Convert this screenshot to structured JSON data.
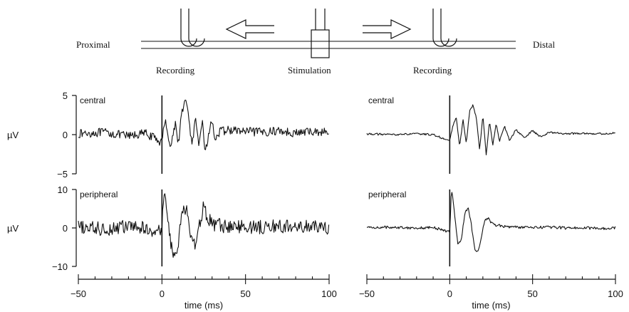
{
  "diagram": {
    "proximal_label": "Proximal",
    "distal_label": "Distal",
    "recording_left": "Recording",
    "stimulation": "Stimulation",
    "recording_right": "Recording"
  },
  "chart_data": [
    {
      "type": "line",
      "panel": "left-top",
      "label": "central",
      "ylabel": "µV",
      "xlim": [
        -50,
        100
      ],
      "ylim": [
        -5,
        5
      ],
      "yticks": [
        5,
        0,
        -5
      ],
      "stimulus_artifact_ms": 0,
      "series": [
        {
          "x": [
            -50,
            -35,
            -20,
            -10,
            0,
            2,
            5,
            8,
            10,
            12,
            14,
            16,
            18,
            20,
            22,
            24,
            26,
            28,
            30,
            32,
            35,
            40,
            50,
            60,
            70,
            80,
            90,
            100
          ],
          "y": [
            0.1,
            0.3,
            -0.2,
            0.2,
            -1.0,
            2.2,
            -1.8,
            1.5,
            -1.2,
            3.2,
            4.3,
            2.4,
            -1.5,
            1.9,
            -1.6,
            2.0,
            -2.4,
            0.2,
            1.8,
            -0.6,
            0.4,
            0.6,
            0.4,
            0.3,
            0.5,
            0.2,
            0.4,
            0.3
          ]
        }
      ]
    },
    {
      "type": "line",
      "panel": "left-bottom",
      "label": "peripheral",
      "ylabel": "µV",
      "xlim": [
        -50,
        100
      ],
      "ylim": [
        -10,
        10
      ],
      "yticks": [
        10,
        0,
        -10
      ],
      "stimulus_artifact_ms": 0,
      "series": [
        {
          "x": [
            -50,
            -35,
            -20,
            -10,
            0,
            1,
            2,
            3,
            5,
            7,
            9,
            11,
            13,
            15,
            17,
            19,
            21,
            23,
            25,
            27,
            30,
            35,
            40,
            50,
            60,
            70,
            80,
            90,
            100
          ],
          "y": [
            0.2,
            -0.3,
            0.4,
            -0.2,
            -1.0,
            9.5,
            7.8,
            3.5,
            -3.0,
            -6.8,
            -8.0,
            1.5,
            4.5,
            5.0,
            -1.8,
            -4.5,
            -3.2,
            2.0,
            5.8,
            3.0,
            1.0,
            0.6,
            0.3,
            0.4,
            0.2,
            0.5,
            0.2,
            0.3,
            0.1
          ]
        }
      ]
    },
    {
      "type": "line",
      "panel": "right-top",
      "label": "central",
      "xlim": [
        -50,
        100
      ],
      "ylim": [
        -5,
        5
      ],
      "stimulus_artifact_ms": 0,
      "series": [
        {
          "x": [
            -50,
            -35,
            -20,
            -10,
            0,
            2,
            4,
            6,
            8,
            10,
            12,
            14,
            16,
            18,
            20,
            22,
            24,
            26,
            28,
            30,
            33,
            36,
            40,
            45,
            50,
            55,
            60,
            70,
            80,
            90,
            100
          ],
          "y": [
            0.1,
            0.0,
            0.1,
            0.0,
            -0.8,
            1.2,
            2.2,
            -1.6,
            2.0,
            -1.2,
            3.0,
            3.8,
            2.2,
            -1.9,
            2.4,
            -2.5,
            1.6,
            -1.3,
            1.4,
            -0.9,
            1.1,
            -0.7,
            0.6,
            -0.4,
            0.5,
            -0.3,
            0.3,
            0.1,
            0.2,
            0.1,
            0.2
          ]
        }
      ]
    },
    {
      "type": "line",
      "panel": "right-bottom",
      "label": "peripheral",
      "xlim": [
        -50,
        100
      ],
      "ylim": [
        -10,
        10
      ],
      "stimulus_artifact_ms": 0,
      "series": [
        {
          "x": [
            -50,
            -35,
            -20,
            -10,
            0,
            1,
            2,
            3,
            5,
            7,
            9,
            11,
            13,
            15,
            17,
            19,
            21,
            23,
            25,
            27,
            30,
            35,
            40,
            50,
            60,
            70,
            80,
            90,
            100
          ],
          "y": [
            0.1,
            0.2,
            0.0,
            0.1,
            -1.0,
            9.6,
            7.5,
            3.5,
            -4.5,
            -3.0,
            3.5,
            5.5,
            1.0,
            -5.5,
            -6.3,
            -3.0,
            2.0,
            2.6,
            1.5,
            0.8,
            0.6,
            0.3,
            0.2,
            0.1,
            0.2,
            0.0,
            0.1,
            -0.2,
            0.1
          ]
        }
      ]
    }
  ],
  "axes": {
    "xlabel": "time (ms)",
    "xticks": [
      -50,
      0,
      50,
      100
    ],
    "x_minor_step": 10
  }
}
